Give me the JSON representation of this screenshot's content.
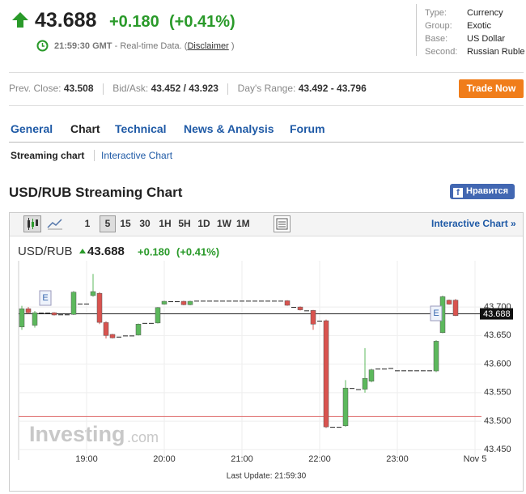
{
  "header": {
    "price": 43.688,
    "change": "+0.180",
    "change_pct": "(+0.41%)",
    "time": "21:59:30 GMT",
    "realtime": "- Real-time Data. (",
    "disclaimer": "Disclaimer",
    "close_paren": ")"
  },
  "info": {
    "rows": [
      [
        "Type:",
        "Currency"
      ],
      [
        "Group:",
        "Exotic"
      ],
      [
        "Base:",
        "US Dollar"
      ],
      [
        "Second:",
        "Russian Ruble"
      ]
    ]
  },
  "quote_bar": {
    "prev_close_label": "Prev. Close:",
    "prev_close": 43.508,
    "bid_ask_label": "Bid/Ask:",
    "bid_ask": "43.452 / 43.923",
    "range_label": "Day's Range:",
    "range": "43.492 - 43.796",
    "trade_button": "Trade Now"
  },
  "tabs": [
    "General",
    "Chart",
    "Technical",
    "News & Analysis",
    "Forum"
  ],
  "subtabs": [
    "Streaming chart",
    "Interactive Chart"
  ],
  "section_title": "USD/RUB Streaming Chart",
  "like_button": "Нравится",
  "toolbar": {
    "intervals": [
      "1",
      "5",
      "15",
      "30",
      "1H",
      "5H",
      "1D",
      "1W",
      "1M"
    ],
    "interactive_link": "Interactive Chart »"
  },
  "chart_data": {
    "type": "candlestick",
    "title": "USD/RUB",
    "last": 43.688,
    "event_labels": [
      "E",
      "E"
    ],
    "watermark": "Investing",
    "watermark_suffix": ".com",
    "last_update": "Last Update: 21:59:30",
    "up_color": "#5cb85c",
    "down_color": "#d9534f",
    "grid": true,
    "xlim": [
      1087.5,
      1445
    ],
    "ylim": [
      43.432,
      43.781
    ],
    "xticks": [
      {
        "value": 1140,
        "label": "19:00"
      },
      {
        "value": 1200,
        "label": "20:00"
      },
      {
        "value": 1260,
        "label": "21:00"
      },
      {
        "value": 1320,
        "label": "22:00"
      },
      {
        "value": 1380,
        "label": "23:00"
      },
      {
        "value": 1440,
        "label": "Nov 5"
      }
    ],
    "yticks": [
      {
        "value": 43.45,
        "label": "43.450"
      },
      {
        "value": 43.5,
        "label": "43.500"
      },
      {
        "value": 43.55,
        "label": "43.550"
      },
      {
        "value": 43.6,
        "label": "43.600"
      },
      {
        "value": 43.65,
        "label": "43.650"
      },
      {
        "value": 43.7,
        "label": "43.700"
      }
    ],
    "x": [
      1090,
      1095,
      1100,
      1105,
      1110,
      1115,
      1120,
      1125,
      1130,
      1135,
      1140,
      1145,
      1150,
      1155,
      1160,
      1165,
      1170,
      1175,
      1180,
      1185,
      1190,
      1195,
      1200,
      1205,
      1210,
      1215,
      1220,
      1225,
      1230,
      1235,
      1240,
      1245,
      1250,
      1255,
      1260,
      1265,
      1270,
      1275,
      1280,
      1285,
      1290,
      1295,
      1300,
      1305,
      1310,
      1315,
      1320,
      1325,
      1330,
      1335,
      1340,
      1345,
      1350,
      1355,
      1360,
      1365,
      1370,
      1375,
      1380,
      1385,
      1390,
      1395,
      1400,
      1405,
      1410,
      1415,
      1420,
      1425
    ],
    "open": [
      43.665,
      43.697,
      43.668,
      43.69,
      43.69,
      43.69,
      43.687,
      43.687,
      43.687,
      43.706,
      43.706,
      43.72,
      43.724,
      43.673,
      43.652,
      43.648,
      43.65,
      43.65,
      43.651,
      43.672,
      43.672,
      43.672,
      43.705,
      43.71,
      43.71,
      43.71,
      43.704,
      43.711,
      43.711,
      43.711,
      43.711,
      43.711,
      43.711,
      43.711,
      43.711,
      43.711,
      43.711,
      43.711,
      43.711,
      43.711,
      43.711,
      43.711,
      43.7,
      43.7,
      43.694,
      43.694,
      43.676,
      43.676,
      43.49,
      43.49,
      43.492,
      43.558,
      43.556,
      43.556,
      43.57,
      43.592,
      43.592,
      43.593,
      43.589,
      43.589,
      43.589,
      43.589,
      43.589,
      43.589,
      43.588,
      43.655,
      43.712,
      43.712
    ],
    "high": [
      43.702,
      43.7,
      43.693,
      43.69,
      43.69,
      43.691,
      43.687,
      43.687,
      43.728,
      43.706,
      43.706,
      43.758,
      43.726,
      43.675,
      43.653,
      43.648,
      43.65,
      43.65,
      43.671,
      43.672,
      43.672,
      43.7,
      43.711,
      43.71,
      43.71,
      43.711,
      43.711,
      43.711,
      43.711,
      43.711,
      43.711,
      43.711,
      43.711,
      43.711,
      43.711,
      43.711,
      43.711,
      43.711,
      43.711,
      43.711,
      43.711,
      43.712,
      43.7,
      43.701,
      43.694,
      43.695,
      43.676,
      43.678,
      43.49,
      43.49,
      43.572,
      43.558,
      43.556,
      43.628,
      43.592,
      43.592,
      43.592,
      43.593,
      43.589,
      43.589,
      43.589,
      43.589,
      43.589,
      43.589,
      43.642,
      43.72,
      43.713,
      43.714
    ],
    "low": [
      43.66,
      43.688,
      43.664,
      43.69,
      43.69,
      43.685,
      43.687,
      43.687,
      43.686,
      43.706,
      43.706,
      43.718,
      43.67,
      43.645,
      43.645,
      43.648,
      43.65,
      43.65,
      43.65,
      43.672,
      43.672,
      43.671,
      43.704,
      43.71,
      43.71,
      43.703,
      43.703,
      43.711,
      43.711,
      43.711,
      43.711,
      43.711,
      43.711,
      43.711,
      43.711,
      43.711,
      43.711,
      43.711,
      43.711,
      43.711,
      43.711,
      43.702,
      43.7,
      43.694,
      43.694,
      43.66,
      43.676,
      43.488,
      43.49,
      43.49,
      43.49,
      43.558,
      43.556,
      43.55,
      43.568,
      43.592,
      43.592,
      43.593,
      43.589,
      43.589,
      43.589,
      43.589,
      43.589,
      43.589,
      43.586,
      43.654,
      43.704,
      43.684
    ],
    "close": [
      43.697,
      43.69,
      43.69,
      43.69,
      43.69,
      43.686,
      43.687,
      43.687,
      43.726,
      43.706,
      43.706,
      43.727,
      43.673,
      43.65,
      43.646,
      43.648,
      43.65,
      43.65,
      43.67,
      43.672,
      43.672,
      43.699,
      43.71,
      43.71,
      43.71,
      43.704,
      43.71,
      43.711,
      43.711,
      43.711,
      43.711,
      43.711,
      43.711,
      43.711,
      43.711,
      43.711,
      43.711,
      43.711,
      43.711,
      43.711,
      43.711,
      43.703,
      43.7,
      43.695,
      43.694,
      43.67,
      43.676,
      43.49,
      43.49,
      43.49,
      43.558,
      43.558,
      43.556,
      43.575,
      43.59,
      43.592,
      43.592,
      43.593,
      43.589,
      43.589,
      43.589,
      43.589,
      43.589,
      43.589,
      43.64,
      43.718,
      43.705,
      43.685
    ]
  }
}
